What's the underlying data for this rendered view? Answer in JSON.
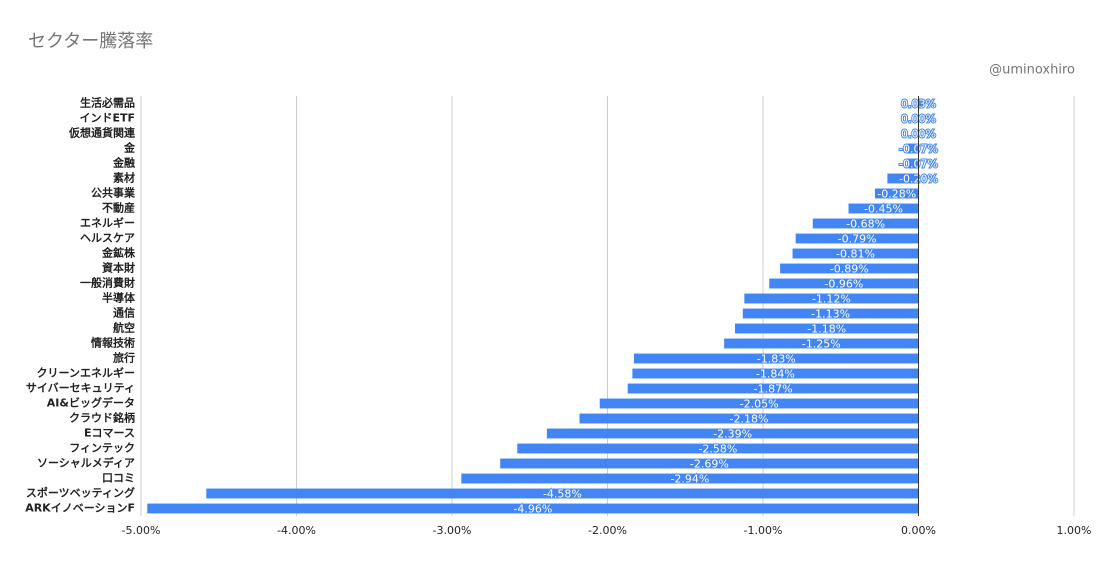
{
  "chart_data": {
    "type": "bar",
    "orientation": "horizontal",
    "title": "セクター騰落率",
    "subtitle": "@uminoxhiro",
    "categories": [
      "生活必需品",
      "インドETF",
      "仮想通貨関連",
      "金",
      "金融",
      "素材",
      "公共事業",
      "不動産",
      "エネルギー",
      "ヘルスケア",
      "金鉱株",
      "資本財",
      "一般消費財",
      "半導体",
      "通信",
      "航空",
      "情報技術",
      "旅行",
      "クリーンエネルギー",
      "サイバーセキュリティ",
      "AI&ビッグデータ",
      "クラウド銘柄",
      "Eコマース",
      "フィンテック",
      "ソーシャルメディア",
      "口コミ",
      "スポーツベッティング",
      "ARKイノベーションF"
    ],
    "values": [
      0.03,
      0,
      0,
      -0.07,
      -0.07,
      -0.2,
      -0.28,
      -0.45,
      -0.68,
      -0.79,
      -0.81,
      -0.89,
      -0.96,
      -1.12,
      -1.13,
      -1.18,
      -1.25,
      -1.83,
      -1.84,
      -1.87,
      -2.05,
      -2.18,
      -2.39,
      -2.58,
      -2.69,
      -2.94,
      -4.58,
      -4.96
    ],
    "value_labels": [
      "0.03%",
      "0.00%",
      "0.00%",
      "-0.07%",
      "-0.07%",
      "-0.20%",
      "-0.28%",
      "-0.45%",
      "-0.68%",
      "-0.79%",
      "-0.81%",
      "-0.89%",
      "-0.96%",
      "-1.12%",
      "-1.13%",
      "-1.18%",
      "-1.25%",
      "-1.83%",
      "-1.84%",
      "-1.87%",
      "-2.05%",
      "-2.18%",
      "-2.39%",
      "-2.58%",
      "-2.69%",
      "-2.94%",
      "-4.58%",
      "-4.96%"
    ],
    "color": "#4285f4",
    "xlim": [
      -5,
      1
    ],
    "xticks": [
      {
        "value": -5,
        "label": "-5.00%"
      },
      {
        "value": -4,
        "label": "-4.00%"
      },
      {
        "value": -3,
        "label": "-3.00%"
      },
      {
        "value": -2,
        "label": "-2.00%"
      },
      {
        "value": -1,
        "label": "-1.00%"
      },
      {
        "value": 0,
        "label": "0.00%"
      },
      {
        "value": 1,
        "label": "1.00%"
      }
    ],
    "grid": true
  }
}
